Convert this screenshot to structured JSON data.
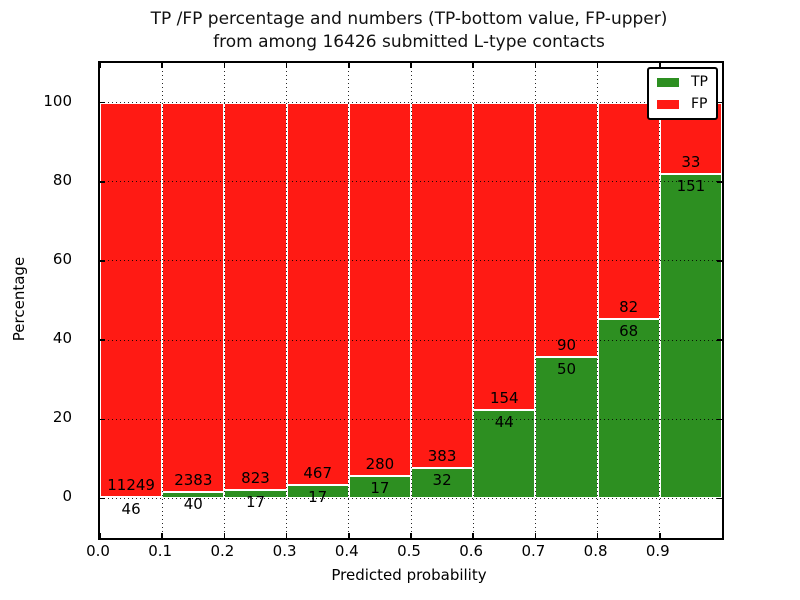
{
  "chart_data": {
    "type": "bar",
    "stacked": true,
    "title": "TP /FP percentage and numbers (TP-bottom value, FP-upper)\nfrom among 16426 submitted L-type contacts",
    "title_lines": [
      "TP /FP percentage and numbers (TP-bottom value, FP-upper)",
      "from among 16426 submitted L-type contacts"
    ],
    "total_contacts": 16426,
    "xlabel": "Predicted probability",
    "ylabel": "Percentage",
    "categories": [
      "0.0",
      "0.1",
      "0.2",
      "0.3",
      "0.4",
      "0.5",
      "0.6",
      "0.7",
      "0.8",
      "0.9"
    ],
    "bin_width": 0.1,
    "series": [
      {
        "name": "TP",
        "color": "#2d8f21",
        "counts": [
          46,
          40,
          17,
          17,
          17,
          32,
          44,
          50,
          68,
          151
        ]
      },
      {
        "name": "FP",
        "color": "#ff1a14",
        "counts": [
          11249,
          2383,
          823,
          467,
          280,
          383,
          154,
          90,
          82,
          33
        ]
      }
    ],
    "tp_percent": [
      0.41,
      1.65,
      2.02,
      3.51,
      5.72,
      7.71,
      22.22,
      35.71,
      45.33,
      82.07
    ],
    "bar_total_percent": 100,
    "xticks": [
      "0.0",
      "0.1",
      "0.2",
      "0.3",
      "0.4",
      "0.5",
      "0.6",
      "0.7",
      "0.8",
      "0.9"
    ],
    "yticks": [
      0,
      20,
      40,
      60,
      80,
      100
    ],
    "xlim": [
      0.0,
      1.0
    ],
    "ylim": [
      -10,
      110
    ],
    "grid": "dotted",
    "legend": {
      "position": "upper right",
      "entries": [
        {
          "label": "TP",
          "color": "#2d8f21"
        },
        {
          "label": "FP",
          "color": "#ff1a14"
        }
      ]
    },
    "colors": {
      "background": "#ffffff",
      "axes": "#000000",
      "text": "#000000"
    }
  }
}
